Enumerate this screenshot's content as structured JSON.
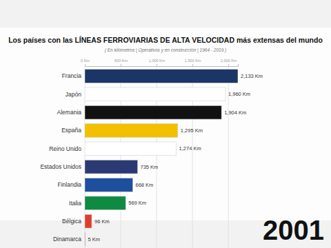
{
  "chart_data": {
    "type": "bar",
    "orientation": "horizontal",
    "title": "Los países con las LÍNEAS FERROVIARIAS DE ALTA VELOCIDAD más extensas del mundo",
    "subtitle": "( En kilómetros | Operativos y en construcción | 1964 - 2019 )",
    "annotations": [
      "2001"
    ],
    "categories": [
      "Francia",
      "Japón",
      "Alemania",
      "España",
      "Reino Unido",
      "Estados Unidos",
      "Finlandia",
      "Italia",
      "Bélgica",
      "Dinamarca"
    ],
    "values": [
      2133,
      1960,
      1904,
      1295,
      1274,
      735,
      668,
      569,
      96,
      5
    ],
    "value_labels": [
      "2,133 Km",
      "1,960 Km",
      "1,904 Km",
      "1,295 Km",
      "1,274 Km",
      "735 Km",
      "668 Km",
      "569 Km",
      "96 Km",
      "5 Km"
    ],
    "colors": [
      "#1b3566",
      "#ffffff",
      "#111111",
      "#f3c000",
      "#ffffff",
      "#2b3a73",
      "#1d4f9e",
      "#0f8a43",
      "#e23b2e",
      "#c8102e"
    ],
    "xlim": [
      0,
      2133
    ],
    "xticks": [
      {
        "value": 0,
        "label": "0 Km"
      },
      {
        "value": 500,
        "label": "500 Km"
      },
      {
        "value": 1000,
        "label": "1,000 Km"
      },
      {
        "value": 1500,
        "label": "1,500 Km"
      },
      {
        "value": 2000,
        "label": "2,000 Km"
      }
    ],
    "grid": true,
    "data_labels": true
  }
}
